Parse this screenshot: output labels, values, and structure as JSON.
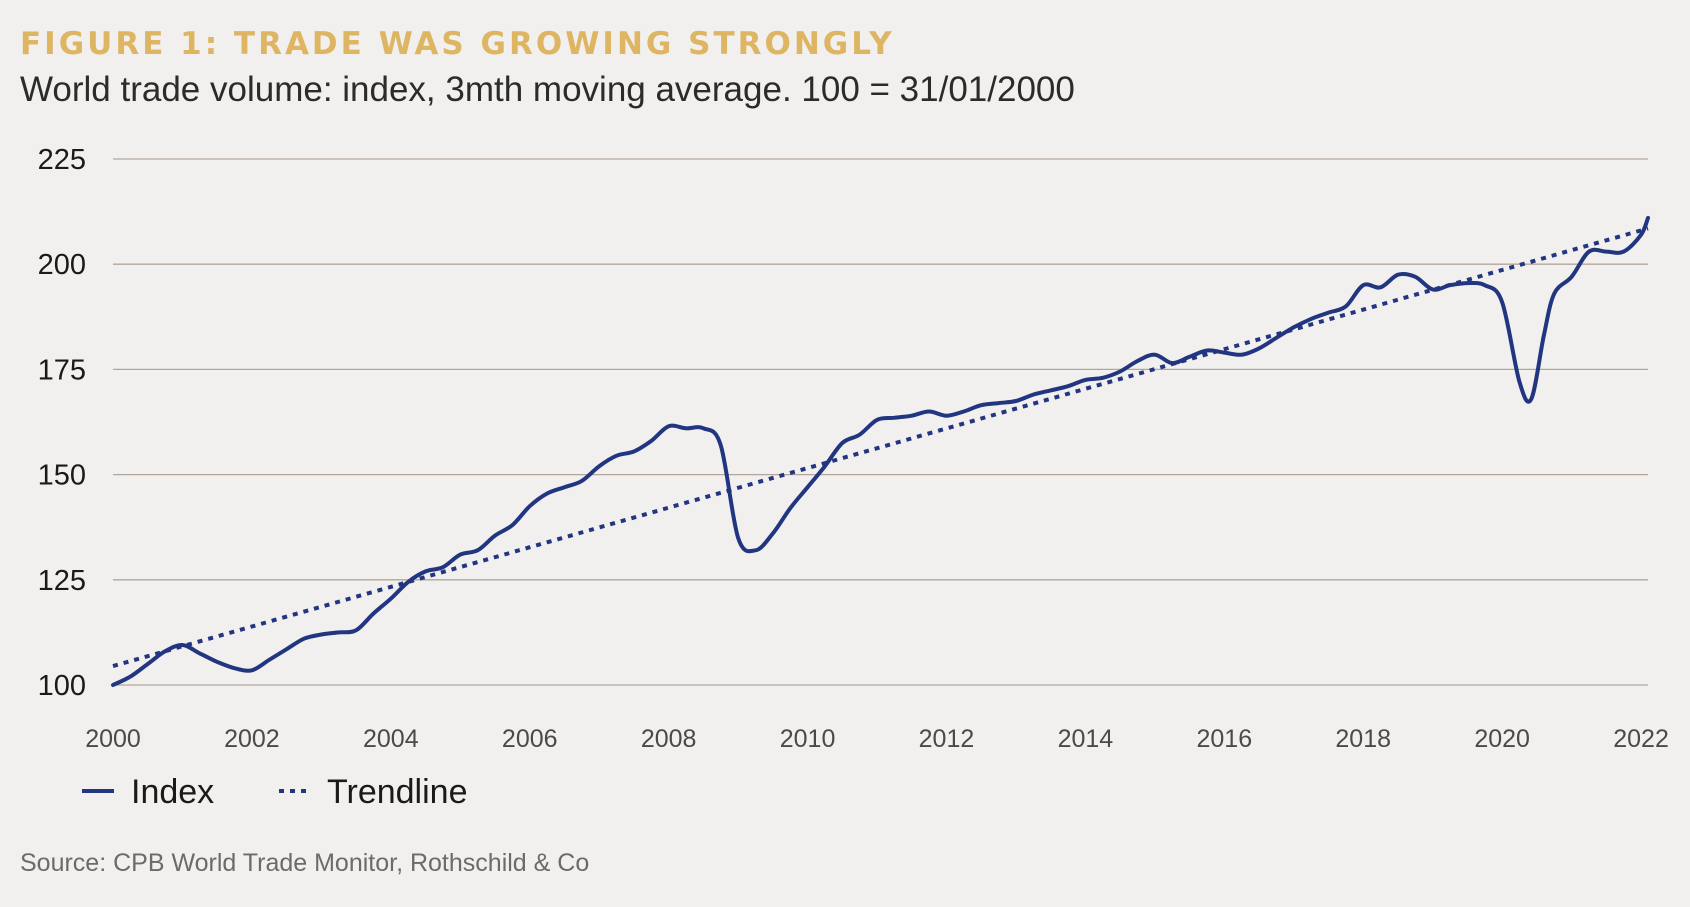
{
  "title": "FIGURE 1: TRADE WAS GROWING STRONGLY",
  "subtitle": "World trade volume: index, 3mth moving average. 100 = 31/01/2000",
  "source": "Source: CPB World Trade Monitor, Rothschild & Co",
  "colors": {
    "title": "#ddb563",
    "series": "#223580",
    "grid": "#b3a59a",
    "background": "#f2f0ee"
  },
  "chart_data": {
    "type": "line",
    "title": "FIGURE 1: TRADE WAS GROWING STRONGLY",
    "subtitle": "World trade volume: index, 3mth moving average. 100 = 31/01/2000",
    "xlabel": "",
    "ylabel": "",
    "xlim": [
      2000,
      2022.1
    ],
    "ylim": [
      100,
      225
    ],
    "yticks": [
      100,
      125,
      150,
      175,
      200,
      225
    ],
    "xticks": [
      2000,
      2002,
      2004,
      2006,
      2008,
      2010,
      2012,
      2014,
      2016,
      2018,
      2020,
      2022
    ],
    "grid": "horizontal",
    "legend_position": "bottom-left",
    "series": [
      {
        "name": "Index",
        "style": "solid",
        "x": [
          2000.0,
          2000.25,
          2000.5,
          2000.75,
          2001.0,
          2001.25,
          2001.5,
          2001.75,
          2002.0,
          2002.25,
          2002.5,
          2002.75,
          2003.0,
          2003.25,
          2003.5,
          2003.75,
          2004.0,
          2004.25,
          2004.5,
          2004.75,
          2005.0,
          2005.25,
          2005.5,
          2005.75,
          2006.0,
          2006.25,
          2006.5,
          2006.75,
          2007.0,
          2007.25,
          2007.5,
          2007.75,
          2008.0,
          2008.25,
          2008.5,
          2008.75,
          2009.0,
          2009.25,
          2009.5,
          2009.75,
          2010.0,
          2010.25,
          2010.5,
          2010.75,
          2011.0,
          2011.25,
          2011.5,
          2011.75,
          2012.0,
          2012.25,
          2012.5,
          2012.75,
          2013.0,
          2013.25,
          2013.5,
          2013.75,
          2014.0,
          2014.25,
          2014.5,
          2014.75,
          2015.0,
          2015.25,
          2015.5,
          2015.75,
          2016.0,
          2016.25,
          2016.5,
          2016.75,
          2017.0,
          2017.25,
          2017.5,
          2017.75,
          2018.0,
          2018.25,
          2018.5,
          2018.75,
          2019.0,
          2019.25,
          2019.5,
          2019.75,
          2020.0,
          2020.25,
          2020.42,
          2020.6,
          2020.75,
          2021.0,
          2021.25,
          2021.5,
          2021.75,
          2022.0,
          2022.1
        ],
        "values": [
          100,
          102,
          105,
          108,
          109.5,
          107.5,
          105.5,
          104,
          103.5,
          106,
          108.5,
          111,
          112,
          112.5,
          113,
          117,
          120.5,
          124.5,
          127,
          128,
          131,
          132,
          135.5,
          138,
          142.5,
          145.5,
          147,
          148.5,
          152,
          154.5,
          155.5,
          158,
          161.5,
          161,
          161,
          157,
          135,
          132,
          136,
          142,
          147,
          152,
          157.5,
          159.5,
          163,
          163.5,
          164,
          165,
          164,
          165,
          166.5,
          167,
          167.5,
          169,
          170,
          171,
          172.5,
          173,
          174.5,
          177,
          178.5,
          176.5,
          178,
          179.5,
          179,
          178.5,
          180,
          182.5,
          185,
          187,
          188.5,
          190,
          195,
          194.5,
          197.5,
          197,
          194,
          195,
          195.5,
          195,
          191,
          172,
          168,
          183,
          193,
          197,
          203,
          203,
          203,
          207,
          211
        ]
      },
      {
        "name": "Trendline",
        "style": "dotted",
        "x": [
          2000.0,
          2022.1
        ],
        "values": [
          104.5,
          208.5
        ]
      }
    ]
  },
  "legend": {
    "items": [
      {
        "label": "Index"
      },
      {
        "label": "Trendline"
      }
    ]
  }
}
